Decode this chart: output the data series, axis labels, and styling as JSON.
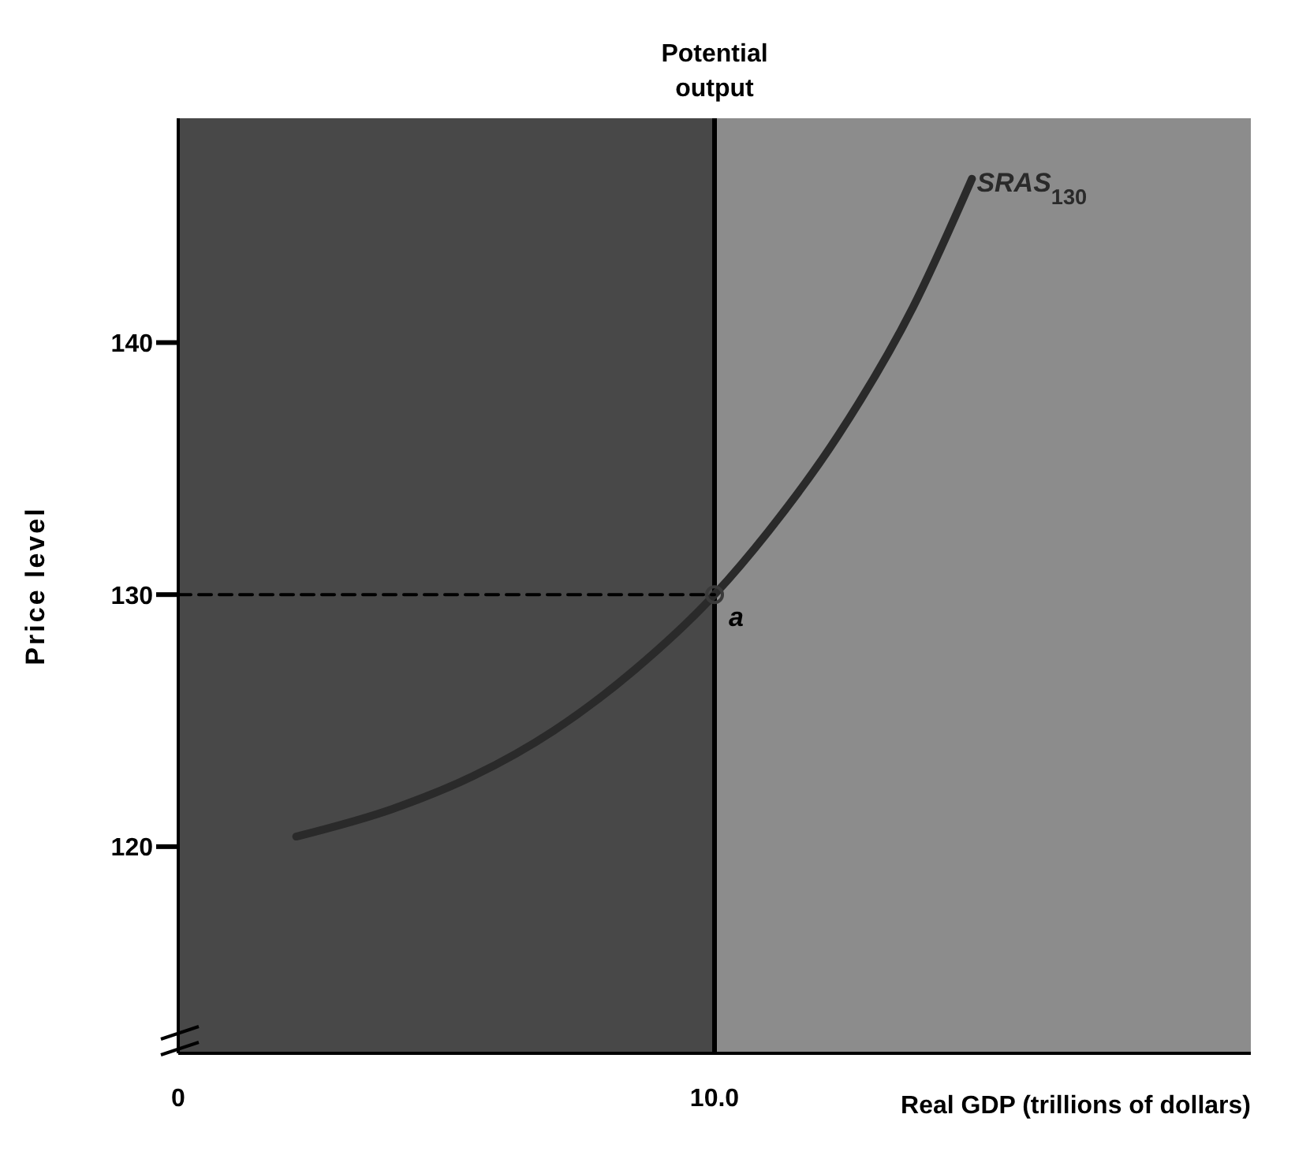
{
  "chart_data": {
    "type": "line",
    "xlabel": "Real GDP (trillions of dollars)",
    "ylabel": "Price level",
    "xlim": [
      0,
      20
    ],
    "xticks": [
      0,
      {
        "value": 10,
        "label": "10.0"
      }
    ],
    "ylim": [
      111.8,
      148.9
    ],
    "yticks": [
      120,
      130,
      140
    ],
    "grid": false,
    "legend": false,
    "series": [
      {
        "name": "SRAS$_{130}$",
        "color": "#2a2a2a",
        "x": [
          2.2,
          4,
          5.5,
          7,
          8.5,
          10,
          11,
          12.3,
          13.7,
          14.8
        ],
        "values": [
          120.4,
          121.5,
          122.8,
          124.6,
          127,
          130,
          132.5,
          136.3,
          141.4,
          146.5
        ]
      },
      {
        "color": "#000000",
        "line_style": "dashed",
        "marker": "none",
        "x": [
          0,
          10
        ],
        "values": [
          130,
          130
        ]
      },
      {
        "type": "scatter",
        "color": "#3a3a3a",
        "marker": "circle",
        "x": [
          10
        ],
        "values": [
          130
        ]
      }
    ],
    "bands": [
      {
        "axis": "x",
        "from": 0,
        "to": 10,
        "color": "#484848"
      },
      {
        "axis": "x",
        "from": 10,
        "to": 20,
        "color": "#8c8c8c"
      }
    ],
    "ref_lines": [
      {
        "axis": "x",
        "value": 10,
        "label": "Potential output",
        "color": "#000000"
      }
    ],
    "annotations": [
      {
        "text": "a",
        "x": 10,
        "y": 130
      }
    ]
  }
}
